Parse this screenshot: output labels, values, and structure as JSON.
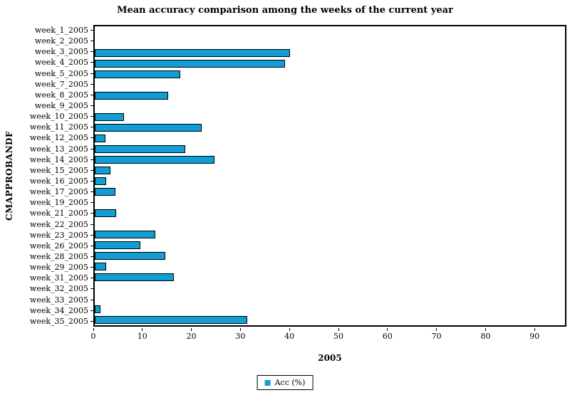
{
  "title": "Mean accuracy comparison among the weeks of the current year",
  "chart_data": {
    "type": "bar",
    "orientation": "horizontal",
    "title": "Mean accuracy comparison among the weeks of the current year",
    "xlabel": "2005",
    "ylabel": "CMAPPROBANDF",
    "categories": [
      "week_1_2005",
      "week_2_2005",
      "week_3_2005",
      "week_4_2005",
      "week_5_2005",
      "week_7_2005",
      "week_8_2005",
      "week_9_2005",
      "week_10_2005",
      "week_11_2005",
      "week_12_2005",
      "week_13_2005",
      "week_14_2005",
      "week_15_2005",
      "week_16_2005",
      "week_17_2005",
      "week_19_2005",
      "week_21_2005",
      "week_22_2005",
      "week_23_2005",
      "week_26_2005",
      "week_28_2005",
      "week_29_2005",
      "week_31_2005",
      "week_32_2005",
      "week_33_2005",
      "week_34_2005",
      "week_35_2005"
    ],
    "values": [
      0,
      0,
      40,
      39,
      17.5,
      0,
      15,
      0,
      6,
      22,
      2.2,
      18.5,
      24.5,
      3.2,
      2.4,
      4.3,
      0,
      4.4,
      0,
      12.5,
      9.3,
      14.5,
      2.3,
      16.2,
      0,
      0,
      1.1,
      31.3
    ],
    "xlim": [
      0,
      96.5
    ],
    "xticks": [
      0,
      10,
      20,
      30,
      40,
      50,
      60,
      70,
      80,
      90
    ],
    "grid": false,
    "bar_color": "#0f9ed5",
    "bar_border_color": "#000000",
    "legend_position": "bottom-center",
    "legend": [
      {
        "label": "Acc (%)",
        "color": "#0f9ed5"
      }
    ]
  }
}
